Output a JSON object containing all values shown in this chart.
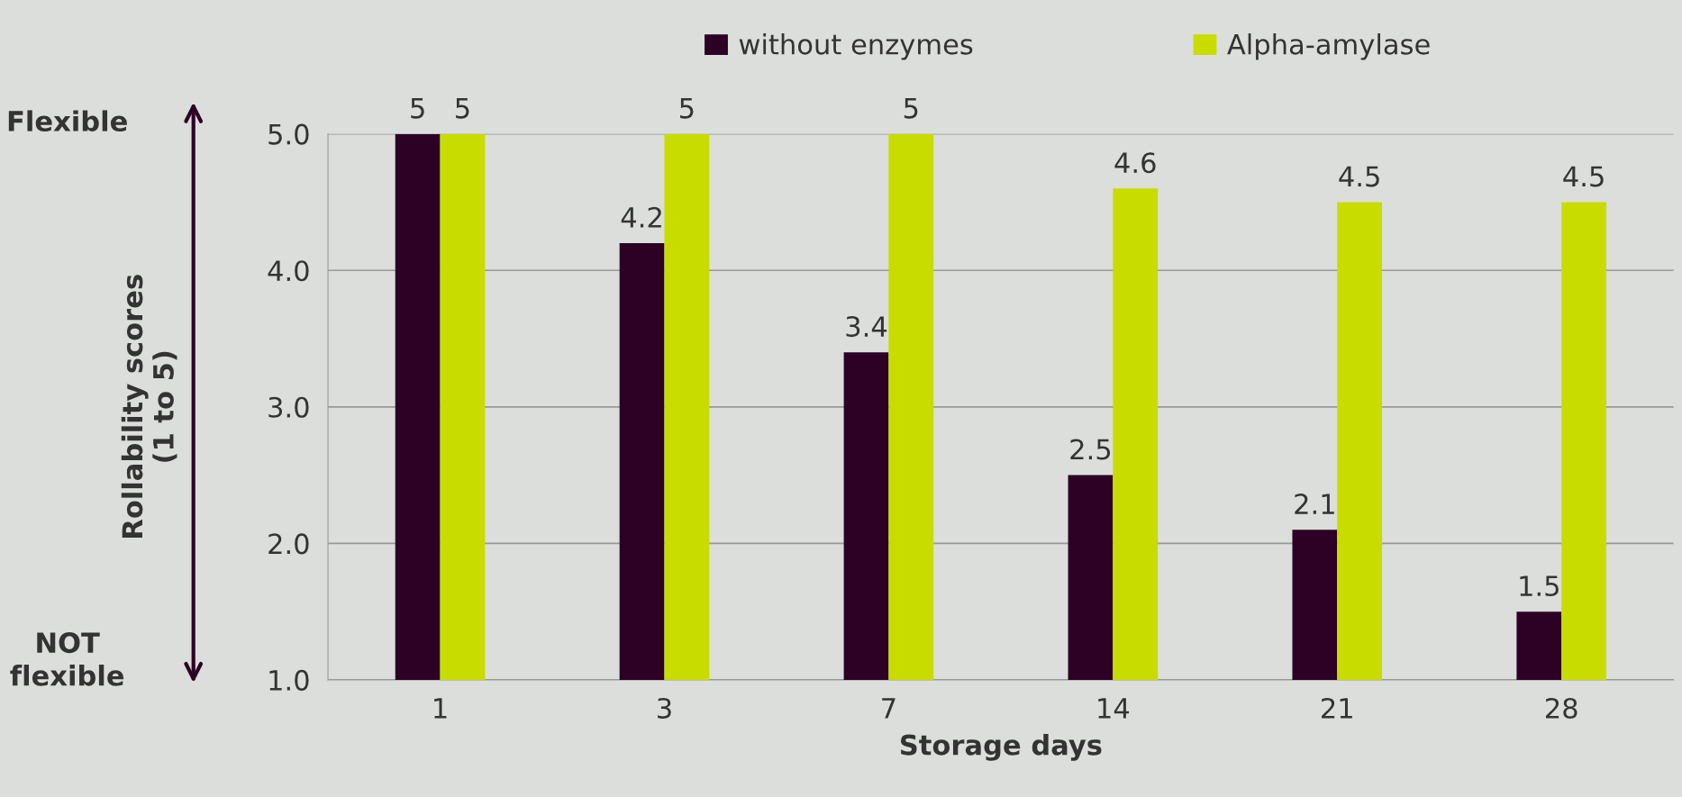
{
  "chart_data": {
    "type": "bar",
    "xlabel": "Storage days",
    "ylabel": "Rollability scores\n(1 to 5)",
    "categories": [
      "1",
      "3",
      "7",
      "14",
      "21",
      "28"
    ],
    "series": [
      {
        "name": "without enzymes",
        "color": "#2d0026",
        "values": [
          5,
          4.2,
          3.4,
          2.5,
          2.1,
          1.5
        ]
      },
      {
        "name": "Alpha-amylase",
        "color": "#c8dc00",
        "values": [
          5,
          5,
          5,
          4.6,
          4.5,
          4.5
        ]
      }
    ],
    "ylim": [
      1,
      5
    ],
    "yticks": [
      {
        "value": 1,
        "label": "1.0"
      },
      {
        "value": 2,
        "label": "2.0"
      },
      {
        "value": 3,
        "label": "3.0"
      },
      {
        "value": 4,
        "label": "4.0"
      },
      {
        "value": 5,
        "label": "5.0"
      }
    ],
    "grid": "y",
    "legend": "top",
    "data_labels": true,
    "annotations": [
      "Flexible",
      "NOT flexible"
    ]
  }
}
